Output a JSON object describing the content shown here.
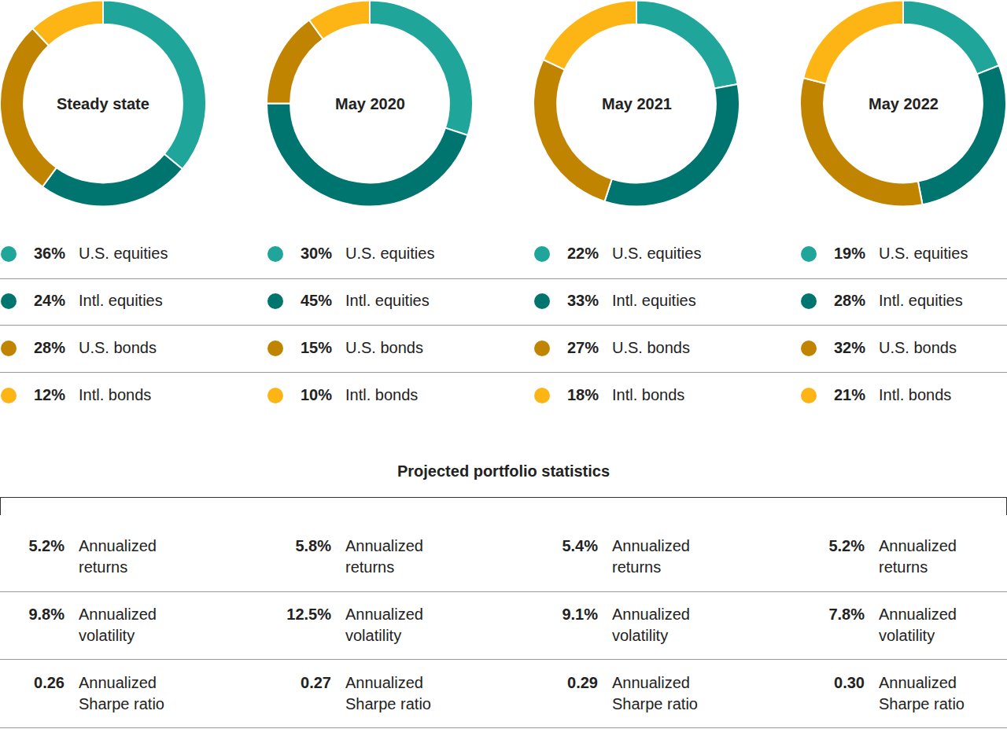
{
  "chart_data": [
    {
      "type": "pie",
      "title": "Steady state",
      "categories": [
        "U.S. equities",
        "Intl. equities",
        "U.S. bonds",
        "Intl. bonds"
      ],
      "values": [
        36,
        24,
        28,
        12
      ],
      "value_labels": [
        "36%",
        "24%",
        "28%",
        "12%"
      ],
      "colors": [
        "#1fa59a",
        "#00756f",
        "#c08400",
        "#fdb515"
      ]
    },
    {
      "type": "pie",
      "title": "May 2020",
      "categories": [
        "U.S. equities",
        "Intl. equities",
        "U.S. bonds",
        "Intl. bonds"
      ],
      "values": [
        30,
        45,
        15,
        10
      ],
      "value_labels": [
        "30%",
        "45%",
        "15%",
        "10%"
      ],
      "colors": [
        "#1fa59a",
        "#00756f",
        "#c08400",
        "#fdb515"
      ]
    },
    {
      "type": "pie",
      "title": "May 2021",
      "categories": [
        "U.S. equities",
        "Intl. equities",
        "U.S. bonds",
        "Intl. bonds"
      ],
      "values": [
        22,
        33,
        27,
        18
      ],
      "value_labels": [
        "22%",
        "33%",
        "27%",
        "18%"
      ],
      "colors": [
        "#1fa59a",
        "#00756f",
        "#c08400",
        "#fdb515"
      ]
    },
    {
      "type": "pie",
      "title": "May 2022",
      "categories": [
        "U.S. equities",
        "Intl. equities",
        "U.S. bonds",
        "Intl. bonds"
      ],
      "values": [
        19,
        28,
        32,
        21
      ],
      "value_labels": [
        "19%",
        "28%",
        "32%",
        "21%"
      ],
      "colors": [
        "#1fa59a",
        "#00756f",
        "#c08400",
        "#fdb515"
      ]
    }
  ],
  "table": {
    "title": "Projected portfolio statistics",
    "rows": [
      {
        "label": "Annualized returns",
        "values": [
          "5.2%",
          "5.8%",
          "5.4%",
          "5.2%"
        ]
      },
      {
        "label": "Annualized volatility",
        "values": [
          "9.8%",
          "12.5%",
          "9.1%",
          "7.8%"
        ]
      },
      {
        "label": "Annualized Sharpe ratio",
        "values": [
          "0.26",
          "0.27",
          "0.29",
          "0.30"
        ]
      }
    ]
  }
}
